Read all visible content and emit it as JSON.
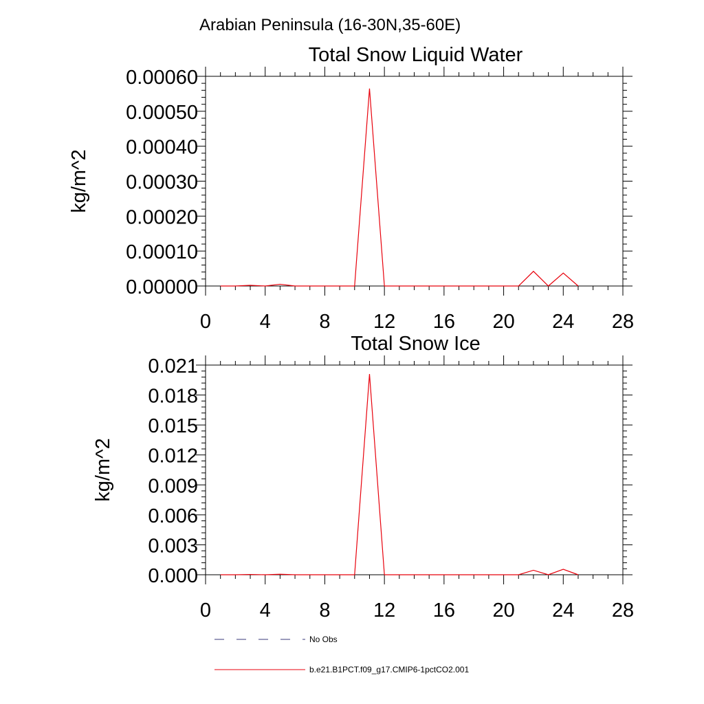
{
  "figure": {
    "region_title": "Arabian Peninsula (16-30N,35-60E)"
  },
  "legend": {
    "placement": "bottom-left",
    "entries": [
      {
        "label": "No Obs",
        "color": "#3a3a78",
        "style": "dashed"
      },
      {
        "label": "b.e21.B1PCT.f09_g17.CMIP6-1pctCO2.001",
        "color": "#e8000b",
        "style": "solid"
      }
    ]
  },
  "chart_data": [
    {
      "type": "line",
      "title": "Total Snow Liquid Water",
      "xlabel": "",
      "ylabel": "kg/m^2",
      "xlim": [
        0,
        28
      ],
      "ylim": [
        0,
        0.0006
      ],
      "xticks": [
        "0",
        "4",
        "8",
        "12",
        "16",
        "20",
        "24",
        "28"
      ],
      "yticks": [
        "0.00000",
        "0.00010",
        "0.00020",
        "0.00030",
        "0.00040",
        "0.00050",
        "0.00060"
      ],
      "grid": false,
      "series": [
        {
          "name": "b.e21.B1PCT.f09_g17.CMIP6-1pctCO2.001",
          "color": "#e8000b",
          "x": [
            1,
            2,
            3,
            4,
            5,
            6,
            7,
            8,
            9,
            10,
            11,
            12,
            13,
            14,
            15,
            16,
            17,
            18,
            19,
            20,
            21,
            22,
            23,
            24,
            25
          ],
          "y": [
            0,
            0,
            2e-06,
            0,
            5e-06,
            0,
            0,
            0,
            0,
            0,
            0.000565,
            0,
            0,
            0,
            0,
            0,
            0,
            0,
            0,
            0,
            0,
            4.2e-05,
            0,
            3.7e-05,
            0
          ]
        }
      ]
    },
    {
      "type": "line",
      "title": "Total Snow Ice",
      "xlabel": "",
      "ylabel": "kg/m^2",
      "xlim": [
        0,
        28
      ],
      "ylim": [
        0,
        0.021
      ],
      "xticks": [
        "0",
        "4",
        "8",
        "12",
        "16",
        "20",
        "24",
        "28"
      ],
      "yticks": [
        "0.000",
        "0.003",
        "0.006",
        "0.009",
        "0.012",
        "0.015",
        "0.018",
        "0.021"
      ],
      "grid": false,
      "series": [
        {
          "name": "b.e21.B1PCT.f09_g17.CMIP6-1pctCO2.001",
          "color": "#e8000b",
          "x": [
            1,
            2,
            3,
            4,
            5,
            6,
            7,
            8,
            9,
            10,
            11,
            12,
            13,
            14,
            15,
            16,
            17,
            18,
            19,
            20,
            21,
            22,
            23,
            24,
            25
          ],
          "y": [
            0,
            0,
            3e-05,
            0,
            5e-05,
            0,
            0,
            0,
            0,
            0,
            0.0201,
            0,
            0,
            0,
            0,
            0,
            0,
            0,
            0,
            0,
            0,
            0.00045,
            0,
            0.00055,
            0
          ]
        }
      ]
    }
  ]
}
